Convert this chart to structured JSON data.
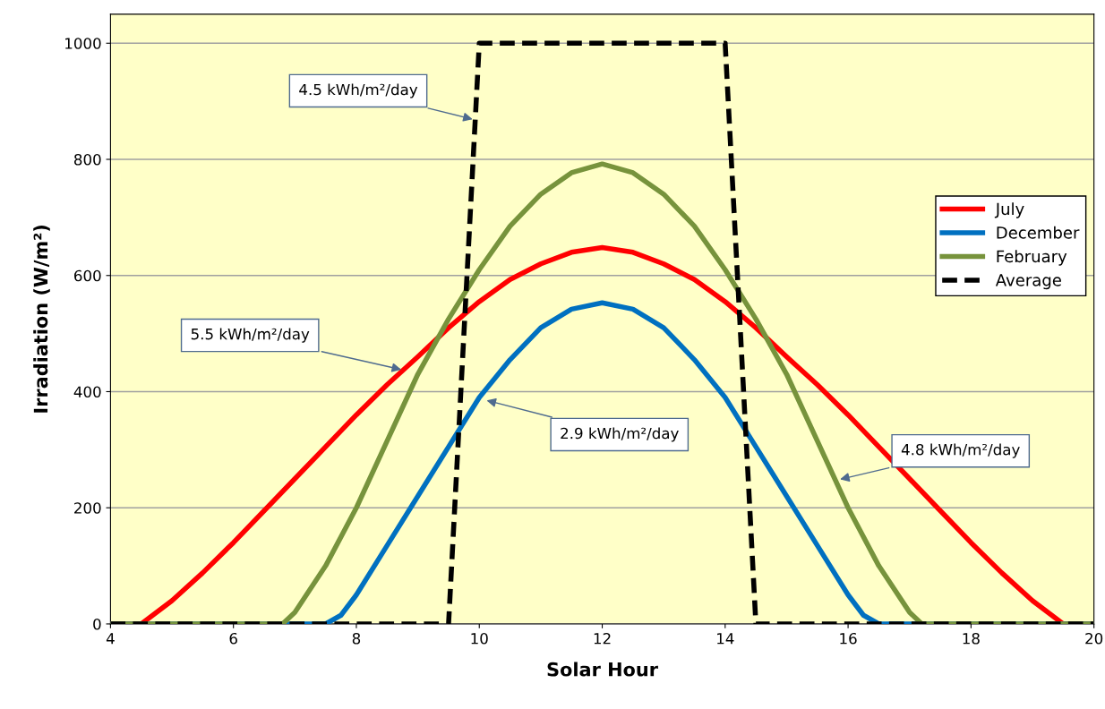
{
  "chart_data": {
    "type": "line",
    "xlabel": "Solar Hour",
    "ylabel": "Irradiation (W/m²)",
    "xlim": [
      4,
      20
    ],
    "ylim": [
      0,
      1050
    ],
    "xticks": [
      4,
      6,
      8,
      10,
      12,
      14,
      16,
      18,
      20
    ],
    "yticks": [
      0,
      200,
      400,
      600,
      800,
      1000
    ],
    "grid": "y",
    "legend": "right",
    "series": [
      {
        "name": "July",
        "color": "#ff0000",
        "x": [
          4,
          4.5,
          5,
          5.5,
          6,
          6.5,
          7,
          7.5,
          8,
          8.5,
          9,
          9.5,
          10,
          10.5,
          11,
          11.5,
          12,
          12.5,
          13,
          13.5,
          14,
          14.5,
          15,
          15.5,
          16,
          16.5,
          17,
          17.5,
          18,
          18.5,
          19,
          19.5,
          20
        ],
        "values": [
          0,
          0,
          40,
          88,
          140,
          195,
          250,
          305,
          360,
          412,
          460,
          510,
          555,
          593,
          620,
          640,
          648,
          640,
          620,
          593,
          555,
          510,
          460,
          412,
          360,
          305,
          250,
          195,
          140,
          88,
          40,
          0,
          0
        ]
      },
      {
        "name": "December",
        "color": "#0070c0",
        "x": [
          4,
          7.5,
          7.75,
          8,
          8.5,
          9,
          9.5,
          10,
          10.5,
          11,
          11.5,
          12,
          12.5,
          13,
          13.5,
          14,
          14.5,
          15,
          15.5,
          16,
          16.25,
          16.5,
          20
        ],
        "values": [
          0,
          0,
          15,
          50,
          135,
          220,
          305,
          390,
          455,
          510,
          542,
          553,
          542,
          510,
          455,
          390,
          305,
          220,
          135,
          50,
          15,
          0,
          0
        ]
      },
      {
        "name": "February",
        "color": "#77933c",
        "x": [
          4,
          6.8,
          7,
          7.5,
          8,
          8.5,
          9,
          9.5,
          10,
          10.5,
          11,
          11.5,
          12,
          12.5,
          13,
          13.5,
          14,
          14.5,
          15,
          15.5,
          16,
          16.5,
          17,
          17.2,
          20
        ],
        "values": [
          0,
          0,
          20,
          100,
          200,
          315,
          430,
          525,
          610,
          685,
          740,
          777,
          792,
          777,
          740,
          685,
          610,
          525,
          430,
          315,
          200,
          100,
          20,
          0,
          0
        ]
      },
      {
        "name": "Average",
        "color": "#000000",
        "line_style": "dashed",
        "x": [
          4,
          9.5,
          10,
          14,
          14.5,
          20
        ],
        "values": [
          0,
          0,
          1000,
          1000,
          0,
          0
        ]
      }
    ],
    "annotations": [
      {
        "text": "4.5 kWh/m²/day",
        "x": 9.93,
        "y": 868
      },
      {
        "text": "5.5 kWh/m²/day",
        "x": 8.77,
        "y": 437
      },
      {
        "text": "2.9 kWh/m²/day",
        "x": 10.08,
        "y": 386
      },
      {
        "text": "4.8 kWh/m²/day",
        "x": 15.83,
        "y": 248
      }
    ]
  }
}
